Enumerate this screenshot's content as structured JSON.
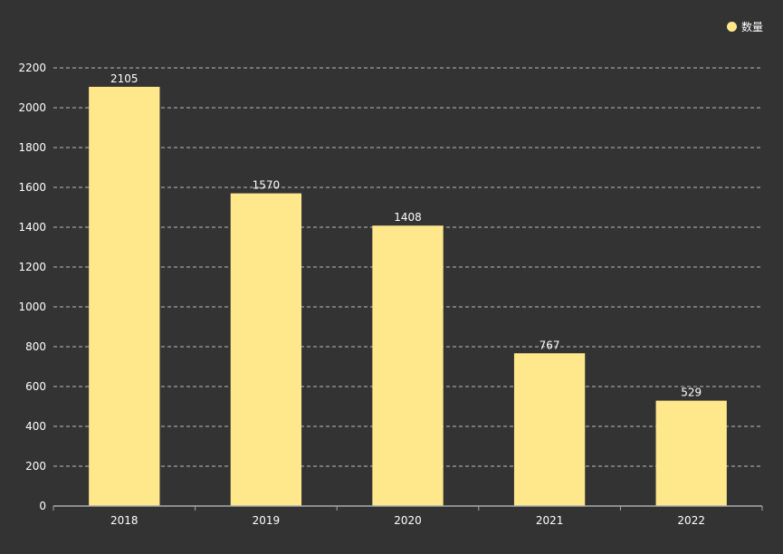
{
  "chart_data": {
    "type": "bar",
    "categories": [
      "2018",
      "2019",
      "2020",
      "2021",
      "2022"
    ],
    "series": [
      {
        "name": "数量",
        "values": [
          2105,
          1570,
          1408,
          767,
          529
        ]
      }
    ],
    "ylim": [
      0,
      2200
    ],
    "yticks": [
      0,
      200,
      400,
      600,
      800,
      1000,
      1200,
      1400,
      1600,
      1800,
      2000,
      2200
    ],
    "grid": true,
    "legend_position": "top-right",
    "colors": {
      "background": "#333333",
      "bar": "#FFE88C",
      "grid": "#bbbbbb",
      "axis": "#aaaaaa",
      "text": "#ffffff"
    }
  }
}
